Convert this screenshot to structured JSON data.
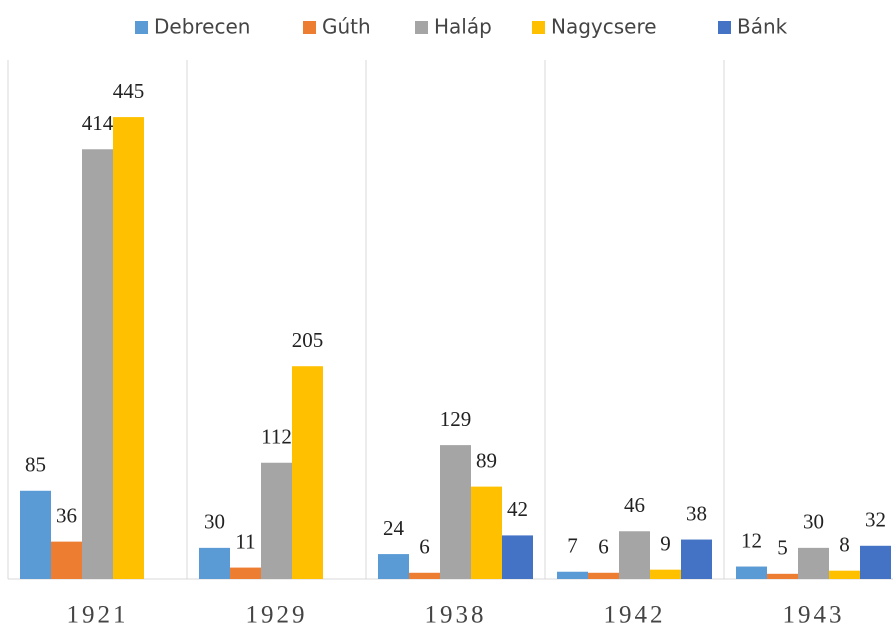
{
  "chart_data": {
    "type": "bar",
    "categories": [
      "1921",
      "1929",
      "1938",
      "1942",
      "1943"
    ],
    "series": [
      {
        "name": "Debrecen",
        "color": "#5b9bd5",
        "values": [
          85,
          30,
          24,
          7,
          12
        ]
      },
      {
        "name": "Gúth",
        "color": "#ed7d31",
        "values": [
          36,
          11,
          6,
          6,
          5
        ]
      },
      {
        "name": "Haláp",
        "color": "#a5a5a5",
        "values": [
          414,
          112,
          129,
          46,
          30
        ]
      },
      {
        "name": "Nagycsere",
        "color": "#ffc000",
        "values": [
          445,
          205,
          89,
          9,
          8
        ]
      },
      {
        "name": "Bánk",
        "color": "#4472c4",
        "values": [
          null,
          null,
          42,
          38,
          32
        ]
      }
    ],
    "ylim": [
      0,
      500
    ],
    "legend": "top"
  }
}
